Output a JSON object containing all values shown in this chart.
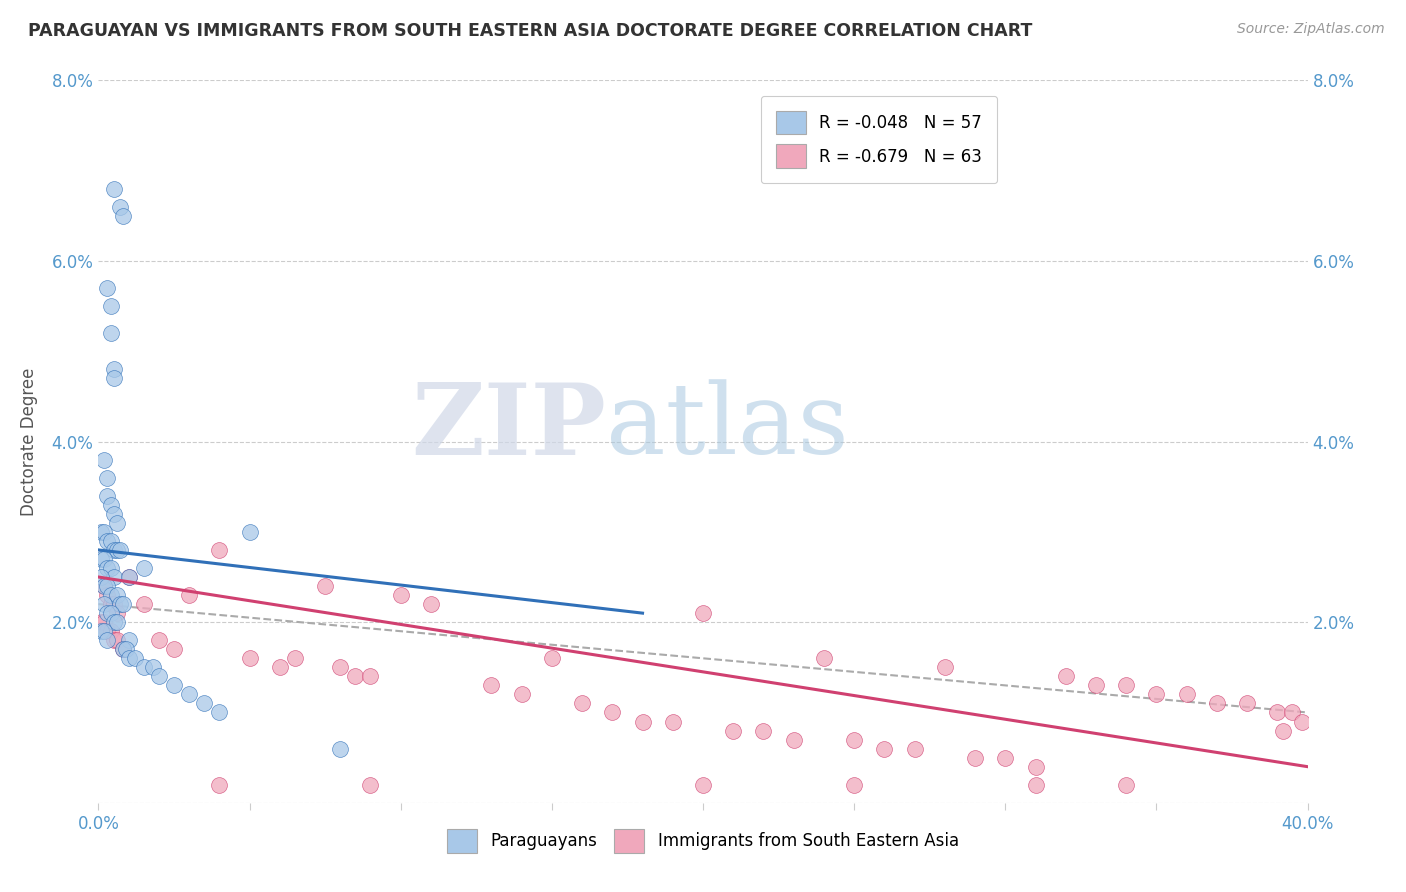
{
  "title": "PARAGUAYAN VS IMMIGRANTS FROM SOUTH EASTERN ASIA DOCTORATE DEGREE CORRELATION CHART",
  "source": "Source: ZipAtlas.com",
  "ylabel": "Doctorate Degree",
  "xlim": [
    0.0,
    0.4
  ],
  "ylim": [
    0.0,
    0.08
  ],
  "xticks": [
    0.0,
    0.05,
    0.1,
    0.15,
    0.2,
    0.25,
    0.3,
    0.35,
    0.4
  ],
  "yticks": [
    0.0,
    0.02,
    0.04,
    0.06,
    0.08
  ],
  "blue_color": "#a8c8e8",
  "pink_color": "#f0a8bc",
  "blue_line_color": "#3070b8",
  "pink_line_color": "#d04070",
  "gray_dash_color": "#aaaaaa",
  "legend_blue_label": "R = -0.048   N = 57",
  "legend_pink_label": "R = -0.679   N = 63",
  "legend_paraguayans": "Paraguayans",
  "legend_immigrants": "Immigrants from South Eastern Asia",
  "watermark_zip": "ZIP",
  "watermark_atlas": "atlas",
  "blue_scatter_x": [
    0.005,
    0.007,
    0.008,
    0.003,
    0.004,
    0.004,
    0.005,
    0.005,
    0.002,
    0.003,
    0.003,
    0.004,
    0.005,
    0.006,
    0.001,
    0.002,
    0.003,
    0.004,
    0.005,
    0.006,
    0.007,
    0.001,
    0.002,
    0.003,
    0.004,
    0.005,
    0.001,
    0.002,
    0.003,
    0.004,
    0.006,
    0.007,
    0.008,
    0.002,
    0.003,
    0.004,
    0.005,
    0.006,
    0.001,
    0.002,
    0.003,
    0.05,
    0.01,
    0.015,
    0.008,
    0.009,
    0.01,
    0.012,
    0.015,
    0.018,
    0.02,
    0.025,
    0.03,
    0.01,
    0.035,
    0.04,
    0.08
  ],
  "blue_scatter_y": [
    0.068,
    0.066,
    0.065,
    0.057,
    0.055,
    0.052,
    0.048,
    0.047,
    0.038,
    0.036,
    0.034,
    0.033,
    0.032,
    0.031,
    0.03,
    0.03,
    0.029,
    0.029,
    0.028,
    0.028,
    0.028,
    0.027,
    0.027,
    0.026,
    0.026,
    0.025,
    0.025,
    0.024,
    0.024,
    0.023,
    0.023,
    0.022,
    0.022,
    0.022,
    0.021,
    0.021,
    0.02,
    0.02,
    0.019,
    0.019,
    0.018,
    0.03,
    0.018,
    0.026,
    0.017,
    0.017,
    0.016,
    0.016,
    0.015,
    0.015,
    0.014,
    0.013,
    0.012,
    0.025,
    0.011,
    0.01,
    0.006
  ],
  "blue_line_x": [
    0.0,
    0.18
  ],
  "blue_line_y": [
    0.028,
    0.021
  ],
  "pink_scatter_x": [
    0.002,
    0.003,
    0.004,
    0.005,
    0.006,
    0.001,
    0.002,
    0.003,
    0.004,
    0.005,
    0.006,
    0.008,
    0.01,
    0.015,
    0.02,
    0.025,
    0.03,
    0.04,
    0.05,
    0.06,
    0.065,
    0.075,
    0.08,
    0.085,
    0.09,
    0.1,
    0.11,
    0.13,
    0.14,
    0.15,
    0.16,
    0.17,
    0.18,
    0.19,
    0.2,
    0.21,
    0.22,
    0.23,
    0.24,
    0.25,
    0.26,
    0.27,
    0.28,
    0.29,
    0.3,
    0.31,
    0.32,
    0.33,
    0.34,
    0.35,
    0.36,
    0.37,
    0.38,
    0.39,
    0.395,
    0.398,
    0.392,
    0.04,
    0.09,
    0.2,
    0.25,
    0.31,
    0.34
  ],
  "pink_scatter_y": [
    0.024,
    0.023,
    0.022,
    0.022,
    0.021,
    0.02,
    0.02,
    0.019,
    0.019,
    0.018,
    0.018,
    0.017,
    0.025,
    0.022,
    0.018,
    0.017,
    0.023,
    0.028,
    0.016,
    0.015,
    0.016,
    0.024,
    0.015,
    0.014,
    0.014,
    0.023,
    0.022,
    0.013,
    0.012,
    0.016,
    0.011,
    0.01,
    0.009,
    0.009,
    0.021,
    0.008,
    0.008,
    0.007,
    0.016,
    0.007,
    0.006,
    0.006,
    0.015,
    0.005,
    0.005,
    0.004,
    0.014,
    0.013,
    0.013,
    0.012,
    0.012,
    0.011,
    0.011,
    0.01,
    0.01,
    0.009,
    0.008,
    0.002,
    0.002,
    0.002,
    0.002,
    0.002,
    0.002
  ],
  "pink_line_x": [
    0.0,
    0.4
  ],
  "pink_line_y": [
    0.025,
    0.004
  ],
  "gray_line_x": [
    0.0,
    0.4
  ],
  "gray_line_y": [
    0.022,
    0.01
  ]
}
